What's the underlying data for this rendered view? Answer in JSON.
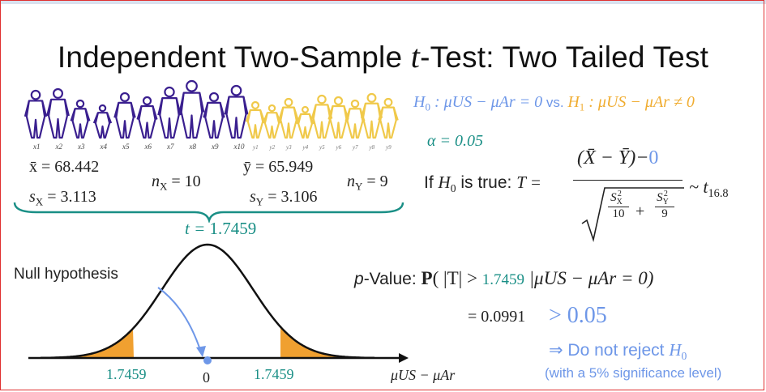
{
  "title": {
    "prefix": "Independent Two-Sample ",
    "t": "t",
    "suffix": "-Test: Two Tailed Test"
  },
  "samples": {
    "x_labels": [
      "x1",
      "x2",
      "x3",
      "x4",
      "x5",
      "x6",
      "x7",
      "x8",
      "x9",
      "x10"
    ],
    "y_labels": [
      "y1",
      "y2",
      "y3",
      "y4",
      "y5",
      "y6",
      "y7",
      "y8",
      "y9"
    ],
    "x_color": "#3a1f8f",
    "y_color": "#f0c94a"
  },
  "stats": {
    "x_mean": "x̄ = 68.442",
    "x_sd": "s",
    "x_sd_sub": "X",
    "x_sd_val": " = 3.113",
    "n_x": "n",
    "n_x_sub": "X",
    "n_x_val": " = 10",
    "y_mean": "ȳ = 65.949",
    "y_sd": "s",
    "y_sd_sub": "Y",
    "y_sd_val": " = 3.106",
    "n_y": "n",
    "n_y_sub": "Y",
    "n_y_val": " = 9",
    "t_label": "t = ",
    "t_value": "1.7459"
  },
  "hypotheses": {
    "h0": "H",
    "h0_sub": "0",
    "h0_body": " : μUS − μAr = 0",
    "vs": " vs. ",
    "h1": "H",
    "h1_sub": "1",
    "h1_body": " : μUS − μAr ≠ 0",
    "alpha": "α = 0.05"
  },
  "test_stat": {
    "prefix": "If ",
    "h0": "H",
    "h0_sub": "0",
    "mid": " is true: ",
    "T_eq": "T =",
    "numerator": "(X̄ − Ȳ)−",
    "numerator_zero": "0",
    "sx2": "S",
    "sx2_sub": "X",
    "sx2_sup": "2",
    "n1": "10",
    "plus": "+",
    "sy2": "S",
    "sy2_sub": "Y",
    "sy2_sup": "2",
    "n2": "9",
    "dist": "~ t",
    "df": "16.8"
  },
  "pvalue": {
    "label_p": "p",
    "label_rest": "-Value: ",
    "prob": "P",
    "open": "( |T| > ",
    "tval": "1.7459",
    "cond": " |μUS − μAr = 0)",
    "eq": "= 0.0991",
    "gt": "> 0.05"
  },
  "conclusion": {
    "line1": "⇒ Do not reject ",
    "h0": "H",
    "h0_sub": "0",
    "line2": "(with a 5% significance level)"
  },
  "plot": {
    "null_label": "Null hypothesis",
    "left_tick": "1.7459",
    "zero_tick": "0",
    "right_tick": "1.7459",
    "axis_label": "μUS − μAr",
    "tail_color": "#f0a030",
    "arrow_color": "#6e97e8",
    "brace_color": "#1a8f86"
  }
}
